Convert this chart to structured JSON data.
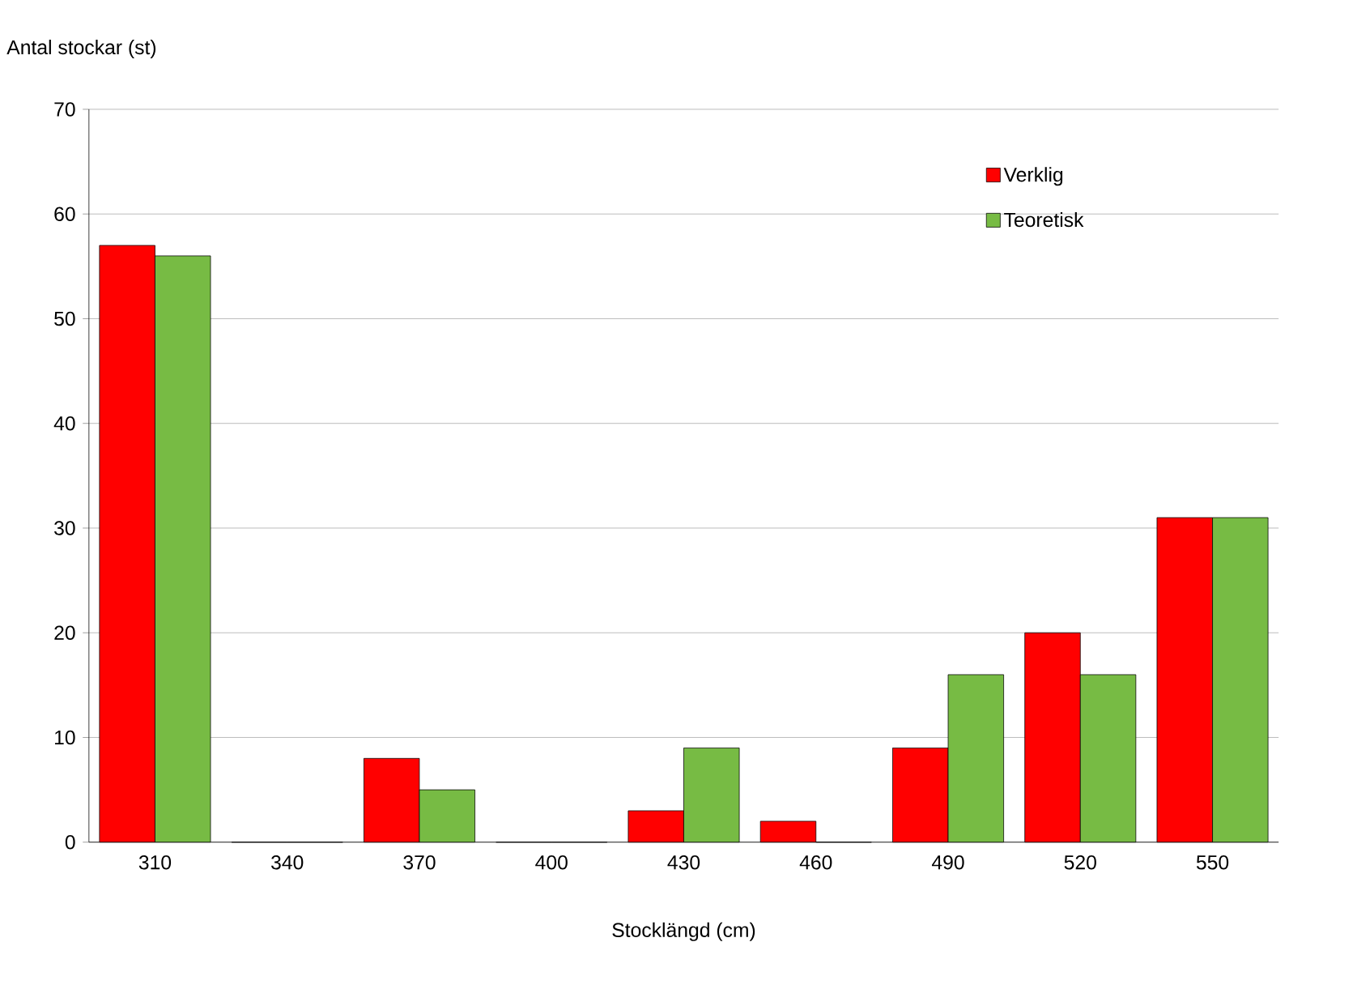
{
  "chart_data": {
    "type": "bar",
    "xlabel": "Stocklängd (cm)",
    "ylabel": "Antal stockar (st)",
    "categories": [
      "310",
      "340",
      "370",
      "400",
      "430",
      "460",
      "490",
      "520",
      "550"
    ],
    "series": [
      {
        "name": "Verklig",
        "color": "#ff0000",
        "values": [
          57,
          0,
          8,
          0,
          3,
          2,
          9,
          20,
          31
        ]
      },
      {
        "name": "Teoretisk",
        "color": "#77bb44",
        "values": [
          56,
          0,
          5,
          0,
          9,
          0,
          16,
          16,
          31
        ]
      }
    ],
    "ylim": [
      0,
      70
    ],
    "yticks": [
      0,
      10,
      20,
      30,
      40,
      50,
      60,
      70
    ],
    "grid": "y",
    "legend": "top right"
  }
}
